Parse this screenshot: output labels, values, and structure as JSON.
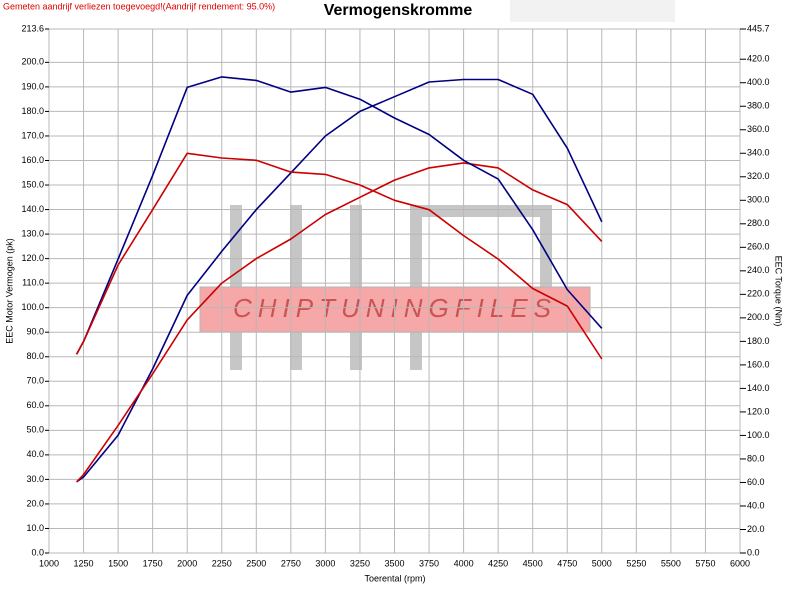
{
  "chart_data": {
    "type": "line",
    "title": "Vermogenskromme",
    "note": "Gemeten aandrijf verliezen toegevoegd!(Aandrijf rendement: 95.0%)",
    "watermark": "CHIPTUNINGFILES",
    "xlabel": "Toerental (rpm)",
    "ylabel": "EEC Motor Vermogen (pk)",
    "y2label": "EEC Torque (Nm)",
    "grid": true,
    "x": [
      1200,
      1250,
      1500,
      1750,
      2000,
      2250,
      2500,
      2750,
      3000,
      3250,
      3500,
      3750,
      4000,
      4250,
      4500,
      4750,
      5000
    ],
    "series": [
      {
        "color": "#000080",
        "values": [
          29,
          31,
          48,
          75,
          105,
          123,
          140,
          155,
          170,
          180,
          186,
          192,
          193,
          193,
          187,
          165,
          135
        ]
      },
      {
        "color": "#cc0000",
        "values": [
          29,
          32,
          52,
          73,
          95,
          110,
          120,
          128,
          138,
          145,
          152,
          157,
          159,
          157,
          148,
          142,
          127
        ]
      },
      {
        "color": "#000080",
        "axis": "y2",
        "values": [
          169,
          180,
          250,
          321,
          396,
          405,
          402,
          392,
          396,
          386,
          370,
          356,
          334,
          318,
          275,
          224,
          191
        ]
      },
      {
        "color": "#cc0000",
        "axis": "y2",
        "values": [
          169,
          180,
          245,
          292,
          340,
          336,
          334,
          324,
          322,
          313,
          300,
          292,
          270,
          250,
          225,
          210,
          165
        ]
      }
    ],
    "xlim": [
      1000,
      6000
    ],
    "xticks": [
      1000,
      1250,
      1500,
      1750,
      2000,
      2250,
      2500,
      2750,
      3000,
      3250,
      3500,
      3750,
      4000,
      4250,
      4500,
      4750,
      5000,
      5250,
      5500,
      5750,
      6000
    ],
    "ylim": [
      0,
      213.6
    ],
    "yticks": [
      {
        "value": 0,
        "label": "0.0"
      },
      {
        "value": 10,
        "label": "10.0"
      },
      {
        "value": 20,
        "label": "20.0"
      },
      {
        "value": 30,
        "label": "30.0"
      },
      {
        "value": 40,
        "label": "40.0"
      },
      {
        "value": 50,
        "label": "50.0"
      },
      {
        "value": 60,
        "label": "60.0"
      },
      {
        "value": 70,
        "label": "70.0"
      },
      {
        "value": 80,
        "label": "80.0"
      },
      {
        "value": 90,
        "label": "90.0"
      },
      {
        "value": 100,
        "label": "100.0"
      },
      {
        "value": 110,
        "label": "110.0"
      },
      {
        "value": 120,
        "label": "120.0"
      },
      {
        "value": 130,
        "label": "130.0"
      },
      {
        "value": 140,
        "label": "140.0"
      },
      {
        "value": 150,
        "label": "150.0"
      },
      {
        "value": 160,
        "label": "160.0"
      },
      {
        "value": 170,
        "label": "170.0"
      },
      {
        "value": 180,
        "label": "180.0"
      },
      {
        "value": 190,
        "label": "190.0"
      },
      {
        "value": 200,
        "label": "200.0"
      },
      213.6
    ],
    "y2lim": [
      0,
      445.7
    ],
    "y2ticks": [
      {
        "value": 0,
        "label": "0.0"
      },
      {
        "value": 20,
        "label": "20.0"
      },
      {
        "value": 40,
        "label": "40.0"
      },
      {
        "value": 60,
        "label": "60.0"
      },
      {
        "value": 80,
        "label": "80.0"
      },
      {
        "value": 100,
        "label": "100.0"
      },
      {
        "value": 120,
        "label": "120.0"
      },
      {
        "value": 140,
        "label": "140.0"
      },
      {
        "value": 160,
        "label": "160.0"
      },
      {
        "value": 180,
        "label": "180.0"
      },
      {
        "value": 200,
        "label": "200.0"
      },
      {
        "value": 220,
        "label": "220.0"
      },
      {
        "value": 240,
        "label": "240.0"
      },
      {
        "value": 260,
        "label": "260.0"
      },
      {
        "value": 280,
        "label": "280.0"
      },
      {
        "value": 300,
        "label": "300.0"
      },
      {
        "value": 320,
        "label": "320.0"
      },
      {
        "value": 340,
        "label": "340.0"
      },
      {
        "value": 360,
        "label": "360.0"
      },
      {
        "value": 380,
        "label": "380.0"
      },
      {
        "value": 400,
        "label": "400.0"
      },
      {
        "value": 420,
        "label": "420.0"
      },
      445.7
    ]
  }
}
